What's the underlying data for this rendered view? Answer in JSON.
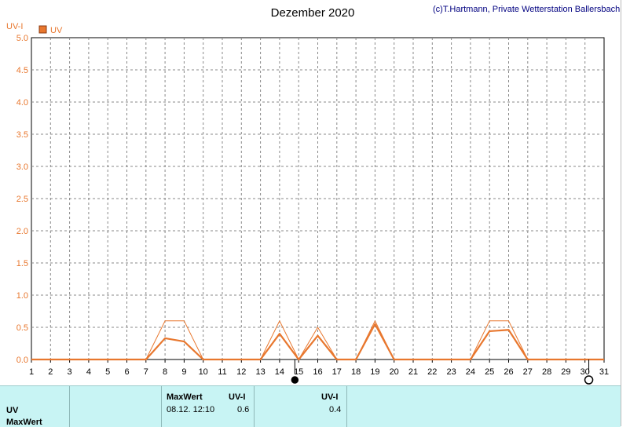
{
  "chart_data": {
    "type": "line",
    "title": "Dezember 2020",
    "copyright": "(c)T.Hartmann, Private Wetterstation Ballersbach",
    "ylabel": "UV-I",
    "ylim": [
      0,
      5
    ],
    "yticks": [
      "0.0",
      "0.5",
      "1.0",
      "1.5",
      "2.0",
      "2.5",
      "3.0",
      "3.5",
      "4.0",
      "4.5",
      "5.0"
    ],
    "xlim": [
      1,
      31
    ],
    "xticks": [
      "1",
      "2",
      "3",
      "4",
      "5",
      "6",
      "7",
      "8",
      "9",
      "10",
      "11",
      "12",
      "13",
      "14",
      "15",
      "16",
      "17",
      "18",
      "19",
      "20",
      "21",
      "22",
      "23",
      "24",
      "25",
      "26",
      "27",
      "28",
      "29",
      "30",
      "31"
    ],
    "grid": true,
    "legend": {
      "label": "UV",
      "color": "#e8772e",
      "placement": "top-left"
    },
    "series": [
      {
        "name": "UV",
        "color": "#e8772e",
        "style": "max",
        "x": [
          1,
          2,
          3,
          4,
          5,
          6,
          7,
          8,
          9,
          10,
          11,
          12,
          13,
          14,
          15,
          16,
          17,
          18,
          19,
          20,
          21,
          22,
          23,
          24,
          25,
          26,
          27,
          28,
          29,
          30,
          31
        ],
        "values": [
          0,
          0,
          0,
          0,
          0,
          0,
          0,
          0.6,
          0.6,
          0,
          0,
          0,
          0,
          0.6,
          0,
          0.5,
          0,
          0,
          0.6,
          0,
          0,
          0,
          0,
          0,
          0.6,
          0.6,
          0,
          0,
          0,
          0,
          0
        ]
      },
      {
        "name": "UV",
        "color": "#e8772e",
        "style": "mean",
        "x": [
          1,
          2,
          3,
          4,
          5,
          6,
          7,
          8,
          9,
          10,
          11,
          12,
          13,
          14,
          15,
          16,
          17,
          18,
          19,
          20,
          21,
          22,
          23,
          24,
          25,
          26,
          27,
          28,
          29,
          30,
          31
        ],
        "values": [
          0,
          0,
          0,
          0,
          0,
          0,
          0,
          0.33,
          0.28,
          0,
          0,
          0,
          0,
          0.4,
          0,
          0.37,
          0,
          0,
          0.55,
          0,
          0,
          0,
          0,
          0,
          0.44,
          0.46,
          0,
          0,
          0,
          0,
          0
        ]
      }
    ],
    "moon_markers": [
      {
        "x": 14.8,
        "phase": "new"
      },
      {
        "x": 30.2,
        "phase": "full"
      }
    ]
  },
  "table": {
    "row_label_1": "UV",
    "row_label_2": "MaxWert",
    "col1_header": "MaxWert",
    "col1_unit": "UV-I",
    "col1_date": "08.12.  12:10",
    "col1_value": "0.6",
    "col2_unit": "UV-I",
    "col2_value": "0.4"
  }
}
